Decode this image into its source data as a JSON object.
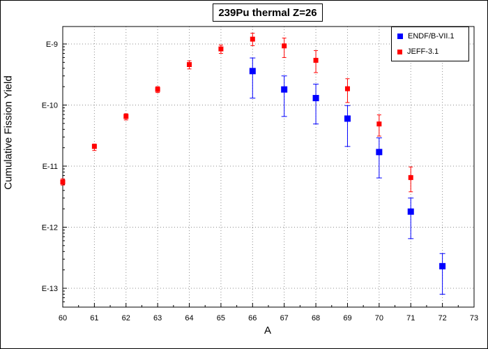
{
  "chart_data": {
    "type": "scatter",
    "title": "239Pu thermal Z=26",
    "xlabel": "A",
    "ylabel": "Cumulative Fission Yield",
    "xlim": [
      60,
      73
    ],
    "ylim": [
      1e-13,
      1e-09
    ],
    "yscale": "log",
    "grid": true,
    "legend_position": "top-right",
    "x_ticks": [
      "60",
      "61",
      "62",
      "63",
      "64",
      "65",
      "66",
      "67",
      "68",
      "69",
      "70",
      "71",
      "72",
      "73"
    ],
    "y_ticks": [
      {
        "label": "E-13",
        "value": 1e-13
      },
      {
        "label": "E-12",
        "value": 1e-12
      },
      {
        "label": "E-11",
        "value": 1e-11
      },
      {
        "label": "E-10",
        "value": 1e-10
      },
      {
        "label": "E-9",
        "value": 1e-09
      }
    ],
    "series": [
      {
        "name": "ENDF/B-VII.1",
        "color": "#0000ff",
        "points": [
          {
            "x": 66,
            "y": 3.6e-10,
            "lo": 1.3e-10,
            "hi": 5.9e-10
          },
          {
            "x": 67,
            "y": 1.8e-10,
            "lo": 6.5e-11,
            "hi": 3e-10
          },
          {
            "x": 68,
            "y": 1.3e-10,
            "lo": 4.9e-11,
            "hi": 2.2e-10
          },
          {
            "x": 69,
            "y": 6e-11,
            "lo": 2.1e-11,
            "hi": 9.8e-11
          },
          {
            "x": 70,
            "y": 1.7e-11,
            "lo": 6.4e-12,
            "hi": 2.9e-11
          },
          {
            "x": 71,
            "y": 1.8e-12,
            "lo": 6.5e-13,
            "hi": 3e-12
          },
          {
            "x": 72,
            "y": 2.3e-13,
            "lo": 8e-14,
            "hi": 3.7e-13
          }
        ]
      },
      {
        "name": "JEFF-3.1",
        "color": "#ff0000",
        "points": [
          {
            "x": 60,
            "y": 5.5e-12,
            "lo": 4.9e-12,
            "hi": 6.2e-12
          },
          {
            "x": 61,
            "y": 2.1e-11,
            "lo": 1.8e-11,
            "hi": 2.3e-11
          },
          {
            "x": 62,
            "y": 6.5e-11,
            "lo": 5.7e-11,
            "hi": 7.2e-11
          },
          {
            "x": 63,
            "y": 1.8e-10,
            "lo": 1.6e-10,
            "hi": 2e-10
          },
          {
            "x": 64,
            "y": 4.6e-10,
            "lo": 3.9e-10,
            "hi": 5.3e-10
          },
          {
            "x": 65,
            "y": 8.3e-10,
            "lo": 7e-10,
            "hi": 9.6e-10
          },
          {
            "x": 66,
            "y": 1.2e-09,
            "lo": 9.4e-10,
            "hi": 1.5e-09
          },
          {
            "x": 67,
            "y": 9.3e-10,
            "lo": 6e-10,
            "hi": 1.25e-09
          },
          {
            "x": 68,
            "y": 5.4e-10,
            "lo": 3.4e-10,
            "hi": 7.8e-10
          },
          {
            "x": 69,
            "y": 1.85e-10,
            "lo": 1.1e-10,
            "hi": 2.7e-10
          },
          {
            "x": 70,
            "y": 4.9e-11,
            "lo": 3.1e-11,
            "hi": 6.9e-11
          },
          {
            "x": 71,
            "y": 6.5e-12,
            "lo": 3.8e-12,
            "hi": 9.7e-12
          }
        ]
      }
    ]
  }
}
